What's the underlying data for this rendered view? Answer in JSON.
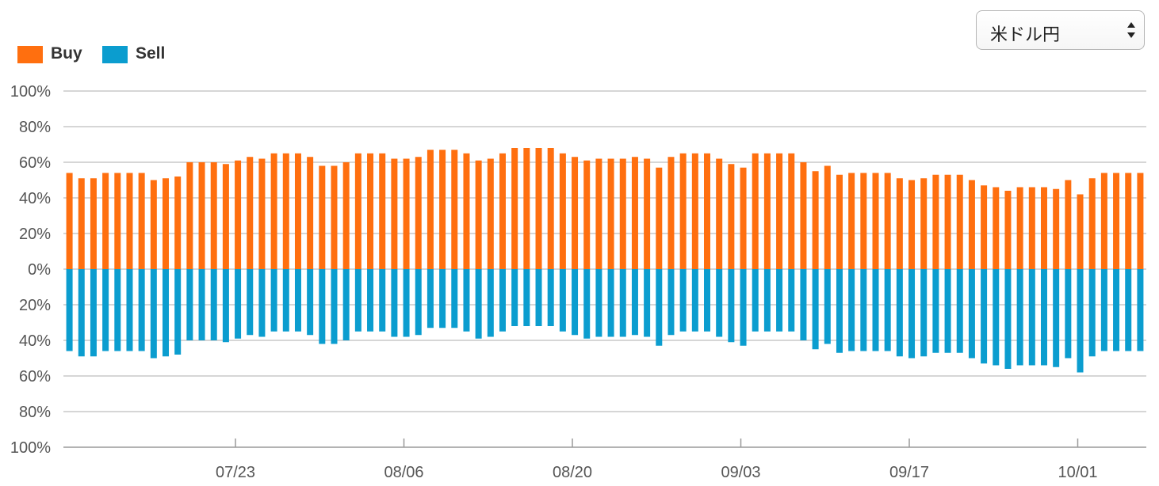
{
  "selector": {
    "value": "米ドル円"
  },
  "colors": {
    "buy": "#ff6f0f",
    "sell": "#0b9dcf",
    "grid": "#c8c8c8"
  },
  "chart_data": {
    "type": "bar",
    "title": "",
    "legend": {
      "placement": "top-left",
      "entries": [
        "Buy",
        "Sell"
      ]
    },
    "y_tick_labels": [
      "100%",
      "80%",
      "60%",
      "40%",
      "20%",
      "0%",
      "20%",
      "40%",
      "60%",
      "80%",
      "100%"
    ],
    "ylim": [
      -100,
      100
    ],
    "grid": true,
    "x_tick_labels": [
      "07/23",
      "08/06",
      "08/20",
      "09/03",
      "09/17",
      "10/01"
    ],
    "x_tick_positions": [
      13.8,
      27.8,
      41.8,
      55.8,
      69.8,
      83.8
    ],
    "categories": [
      "1",
      "2",
      "3",
      "4",
      "5",
      "6",
      "7",
      "8",
      "9",
      "10",
      "11",
      "12",
      "13",
      "14",
      "15",
      "16",
      "17",
      "18",
      "19",
      "20",
      "21",
      "22",
      "23",
      "24",
      "25",
      "26",
      "27",
      "28",
      "29",
      "30",
      "31",
      "32",
      "33",
      "34",
      "35",
      "36",
      "37",
      "38",
      "39",
      "40",
      "41",
      "42",
      "43",
      "44",
      "45",
      "46",
      "47",
      "48",
      "49",
      "50",
      "51",
      "52",
      "53",
      "54",
      "55",
      "56",
      "57",
      "58",
      "59",
      "60",
      "61",
      "62",
      "63",
      "64",
      "65",
      "66",
      "67",
      "68",
      "69",
      "70",
      "71",
      "72",
      "73",
      "74",
      "75",
      "76",
      "77",
      "78",
      "79",
      "80",
      "81",
      "82",
      "83",
      "84",
      "85",
      "86",
      "87",
      "88",
      "89",
      "90"
    ],
    "series": [
      {
        "name": "Buy",
        "values": [
          54,
          51,
          51,
          54,
          54,
          54,
          54,
          50,
          51,
          52,
          60,
          60,
          60,
          59,
          61,
          63,
          62,
          65,
          65,
          65,
          63,
          58,
          58,
          60,
          65,
          65,
          65,
          62,
          62,
          63,
          67,
          67,
          67,
          65,
          61,
          62,
          65,
          68,
          68,
          68,
          68,
          65,
          63,
          61,
          62,
          62,
          62,
          63,
          62,
          57,
          63,
          65,
          65,
          65,
          62,
          59,
          57,
          65,
          65,
          65,
          65,
          60,
          55,
          58,
          53,
          54,
          54,
          54,
          54,
          51,
          50,
          51,
          53,
          53,
          53,
          50,
          47,
          46,
          44,
          46,
          46,
          46,
          45,
          50,
          42,
          51,
          54,
          54,
          54,
          54
        ]
      },
      {
        "name": "Sell",
        "values": [
          46,
          49,
          49,
          46,
          46,
          46,
          46,
          50,
          49,
          48,
          40,
          40,
          40,
          41,
          39,
          37,
          38,
          35,
          35,
          35,
          37,
          42,
          42,
          40,
          35,
          35,
          35,
          38,
          38,
          37,
          33,
          33,
          33,
          35,
          39,
          38,
          35,
          32,
          32,
          32,
          32,
          35,
          37,
          39,
          38,
          38,
          38,
          37,
          38,
          43,
          37,
          35,
          35,
          35,
          38,
          41,
          43,
          35,
          35,
          35,
          35,
          40,
          45,
          42,
          47,
          46,
          46,
          46,
          46,
          49,
          50,
          49,
          47,
          47,
          47,
          50,
          53,
          54,
          56,
          54,
          54,
          54,
          55,
          50,
          58,
          49,
          46,
          46,
          46,
          46
        ]
      }
    ]
  }
}
